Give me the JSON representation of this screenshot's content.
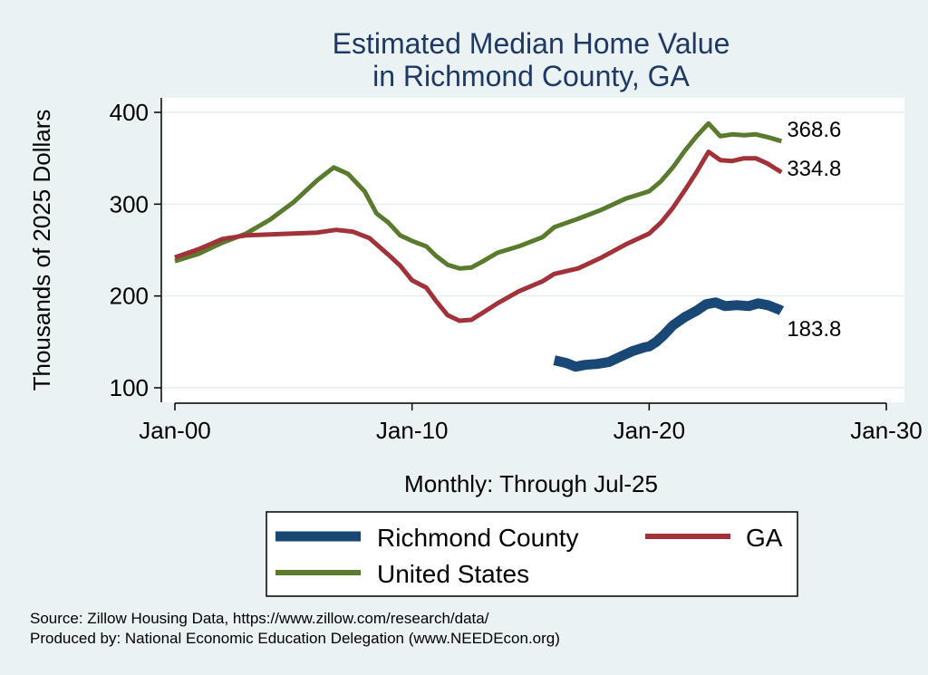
{
  "chart_data": {
    "type": "line",
    "title": "Estimated Median Home Value",
    "subtitle": "in Richmond County, GA",
    "xlabel": "Monthly: Through Jul-25",
    "ylabel": "Thousands of 2025 Dollars",
    "x_ticks": [
      "Jan-00",
      "Jan-10",
      "Jan-20",
      "Jan-30"
    ],
    "y_ticks": [
      100,
      200,
      300,
      400
    ],
    "xlim": [
      2000,
      2030
    ],
    "ylim": [
      100,
      400
    ],
    "grid": true,
    "legend_position": "bottom",
    "series": [
      {
        "name": "Richmond County",
        "color": "#1a4876",
        "end_label": "183.8",
        "points": [
          [
            2016.0,
            130
          ],
          [
            2016.5,
            127
          ],
          [
            2016.9,
            123
          ],
          [
            2017.3,
            125
          ],
          [
            2017.8,
            126
          ],
          [
            2018.3,
            128
          ],
          [
            2018.8,
            134
          ],
          [
            2019.3,
            140
          ],
          [
            2019.8,
            144
          ],
          [
            2020.0,
            145
          ],
          [
            2020.3,
            150
          ],
          [
            2020.6,
            157
          ],
          [
            2021.0,
            168
          ],
          [
            2021.5,
            177
          ],
          [
            2022.0,
            184
          ],
          [
            2022.4,
            191
          ],
          [
            2022.8,
            193
          ],
          [
            2023.2,
            189
          ],
          [
            2023.7,
            190
          ],
          [
            2024.2,
            189
          ],
          [
            2024.6,
            192
          ],
          [
            2025.0,
            190
          ],
          [
            2025.5,
            185
          ],
          [
            2025.58,
            183.8
          ]
        ]
      },
      {
        "name": "GA",
        "color": "#a1323a",
        "end_label": "334.8",
        "points": [
          [
            2000.0,
            242
          ],
          [
            2001.0,
            251
          ],
          [
            2002.0,
            262
          ],
          [
            2003.0,
            266
          ],
          [
            2004.0,
            267
          ],
          [
            2005.0,
            268
          ],
          [
            2006.0,
            269
          ],
          [
            2006.8,
            272
          ],
          [
            2007.5,
            270
          ],
          [
            2008.2,
            263
          ],
          [
            2009.0,
            245
          ],
          [
            2009.5,
            233
          ],
          [
            2010.0,
            217
          ],
          [
            2010.6,
            209
          ],
          [
            2011.0,
            195
          ],
          [
            2011.5,
            179
          ],
          [
            2012.0,
            173
          ],
          [
            2012.5,
            174
          ],
          [
            2013.0,
            182
          ],
          [
            2013.6,
            192
          ],
          [
            2014.5,
            205
          ],
          [
            2015.5,
            216
          ],
          [
            2016.0,
            224
          ],
          [
            2017.0,
            230
          ],
          [
            2018.0,
            242
          ],
          [
            2019.0,
            256
          ],
          [
            2020.0,
            268
          ],
          [
            2020.5,
            280
          ],
          [
            2021.0,
            296
          ],
          [
            2021.5,
            315
          ],
          [
            2022.0,
            335
          ],
          [
            2022.5,
            357
          ],
          [
            2023.0,
            348
          ],
          [
            2023.5,
            347
          ],
          [
            2024.0,
            350
          ],
          [
            2024.5,
            350
          ],
          [
            2025.0,
            344
          ],
          [
            2025.58,
            334.8
          ]
        ]
      },
      {
        "name": "United States",
        "color": "#5a7a2e",
        "end_label": "368.6",
        "points": [
          [
            2000.0,
            238
          ],
          [
            2001.0,
            246
          ],
          [
            2002.0,
            258
          ],
          [
            2003.0,
            268
          ],
          [
            2004.0,
            283
          ],
          [
            2005.0,
            302
          ],
          [
            2006.0,
            326
          ],
          [
            2006.7,
            340
          ],
          [
            2007.3,
            333
          ],
          [
            2008.0,
            314
          ],
          [
            2008.5,
            290
          ],
          [
            2009.0,
            280
          ],
          [
            2009.5,
            266
          ],
          [
            2010.0,
            260
          ],
          [
            2010.6,
            254
          ],
          [
            2011.0,
            244
          ],
          [
            2011.5,
            234
          ],
          [
            2012.0,
            230
          ],
          [
            2012.5,
            231
          ],
          [
            2013.0,
            238
          ],
          [
            2013.6,
            247
          ],
          [
            2014.5,
            254
          ],
          [
            2015.5,
            264
          ],
          [
            2016.0,
            275
          ],
          [
            2017.0,
            284
          ],
          [
            2018.0,
            294
          ],
          [
            2019.0,
            306
          ],
          [
            2020.0,
            314
          ],
          [
            2020.5,
            325
          ],
          [
            2021.0,
            340
          ],
          [
            2021.5,
            358
          ],
          [
            2022.0,
            374
          ],
          [
            2022.5,
            388
          ],
          [
            2023.0,
            374
          ],
          [
            2023.5,
            376
          ],
          [
            2024.0,
            375
          ],
          [
            2024.5,
            376
          ],
          [
            2025.0,
            373
          ],
          [
            2025.58,
            368.6
          ]
        ]
      }
    ]
  },
  "notes": {
    "source": "Source: Zillow Housing Data, https://www.zillow.com/research/data/",
    "produced": "Produced by: National Economic Education Delegation (www.NEEDEcon.org)"
  }
}
